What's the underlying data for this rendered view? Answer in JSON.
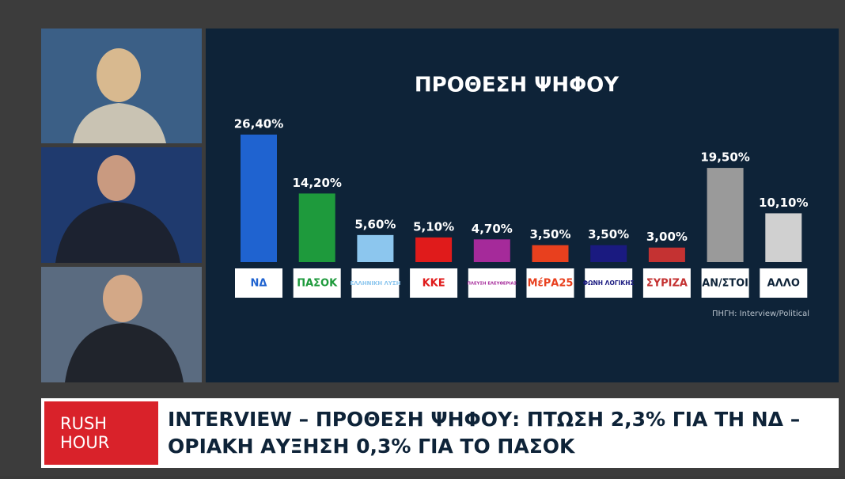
{
  "chart_data": {
    "type": "bar",
    "title": "ΠΡΟΘΕΣΗ ΨΗΦΟΥ",
    "categories": [
      "ΝΔ",
      "ΠΑΣΟΚ",
      "ΕΛΛΗΝΙΚΗ ΛΥΣΗ",
      "ΚΚΕ",
      "ΠΛΕΥΣΗ ΕΛΕΥΘΕΡΙΑΣ",
      "ΜέΡΑ25",
      "ΦΩΝΗ ΛΟΓΙΚΗΣ",
      "ΣΥΡΙΖΑ",
      "ΑΝ/ΣΤΟΙ",
      "ΑΛΛΟ"
    ],
    "values": [
      26.4,
      14.2,
      5.6,
      5.1,
      4.7,
      3.5,
      3.5,
      3.0,
      19.5,
      10.1
    ],
    "value_labels": [
      "26,40%",
      "14,20%",
      "5,60%",
      "5,10%",
      "4,70%",
      "3,50%",
      "3,50%",
      "3,00%",
      "19,50%",
      "10,10%"
    ],
    "colors": [
      "#1f63d0",
      "#1e9a3c",
      "#8cc6ee",
      "#e01b1b",
      "#a52a9a",
      "#e8401e",
      "#1a1a80",
      "#c43232",
      "#9a9a9a",
      "#d0d0d0"
    ],
    "source": "ΠΗΓΗ: Interview/Political"
  },
  "ticker": {
    "show": [
      "RUSH",
      "HOUR"
    ],
    "headline": [
      "INTERVIEW – ΠΡΟΘΕΣΗ ΨΗΦΟΥ: ΠΤΩΣΗ 2,3% ΓΙΑ ΤΗ ΝΔ –",
      "ΟΡΙΑΚΗ ΑΥΞΗΣΗ 0,3% ΓΙΑ ΤΟ ΠΑΣΟΚ"
    ]
  }
}
